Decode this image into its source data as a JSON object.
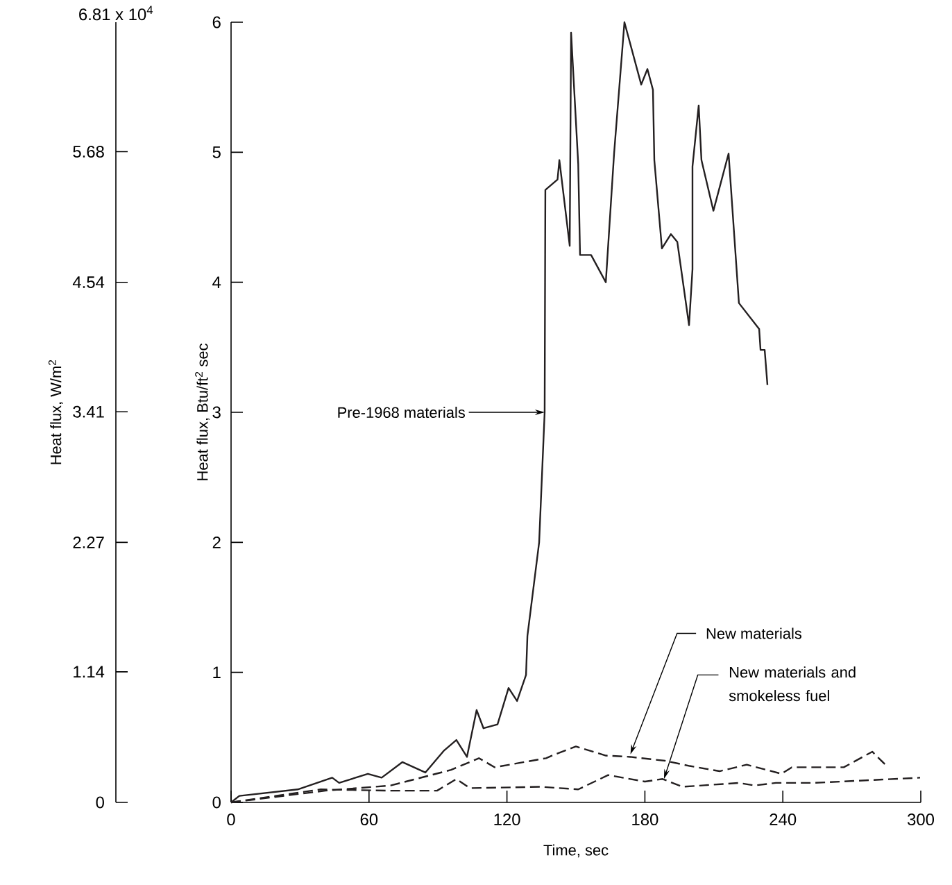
{
  "chart_data": {
    "type": "line",
    "xlabel": "Time, sec",
    "ylabel": "Heat flux, Btu/ft$^{2}$ sec",
    "y2label": "Heat flux, W/m$^{2}$",
    "xlim": [
      0,
      300
    ],
    "xticks": [
      0,
      60,
      120,
      180,
      240,
      300
    ],
    "ylim": [
      0,
      6
    ],
    "yticks": [
      0,
      1,
      2,
      3,
      4,
      5,
      6
    ],
    "y2lim": [
      0,
      6.81
    ],
    "y2ticks": [
      0,
      1.14,
      2.27,
      3.41,
      4.54,
      5.68
    ],
    "series": [
      {
        "color": "#231f20",
        "line_style": "solid",
        "x": [
          0,
          3.6,
          29,
          44,
          47,
          59.5,
          65.5,
          74.5,
          84.5,
          92.7,
          98,
          102.6,
          106.8,
          109.8,
          115.9,
          120.7,
          124.4,
          128.3,
          128.9,
          134,
          136.4,
          136.7,
          142,
          142.8,
          147.3,
          147.9,
          151,
          151.8,
          156.6,
          163,
          166.6,
          171.1,
          178.4,
          181.1,
          183.5,
          184.1,
          187.4,
          191.3,
          194.1,
          199.2,
          200.7,
          200.7,
          203.4,
          204.6,
          209.8,
          216.4,
          220.9,
          229.7,
          230.3,
          232.1,
          233.3
        ],
        "values": [
          0,
          0.05,
          0.1,
          0.19,
          0.15,
          0.22,
          0.19,
          0.31,
          0.23,
          0.4,
          0.48,
          0.35,
          0.71,
          0.57,
          0.6,
          0.88,
          0.78,
          0.98,
          1.28,
          2.0,
          3.0,
          4.71,
          4.79,
          4.94,
          4.28,
          5.92,
          4.91,
          4.21,
          4.21,
          4.0,
          4.99,
          6.0,
          5.52,
          5.64,
          5.48,
          4.94,
          4.26,
          4.37,
          4.31,
          3.67,
          4.1,
          4.89,
          5.36,
          4.94,
          4.55,
          4.99,
          3.84,
          3.64,
          3.48,
          3.48,
          3.21
        ]
      },
      {
        "color": "#231f20",
        "line_style": "dashed",
        "x": [
          0,
          41,
          69.4,
          95.7,
          107.8,
          114.7,
          137,
          141,
          150,
          163,
          173.7,
          188.8,
          199.5,
          212.5,
          224.3,
          239.4,
          243.9,
          253.5,
          266.5,
          278.9,
          284.6
        ],
        "values": [
          0,
          0.09,
          0.13,
          0.25,
          0.34,
          0.27,
          0.34,
          0.37,
          0.43,
          0.36,
          0.35,
          0.32,
          0.28,
          0.24,
          0.29,
          0.22,
          0.27,
          0.27,
          0.27,
          0.39,
          0.29
        ]
      },
      {
        "color": "#231f20",
        "line_style": "dashed",
        "x": [
          0,
          39,
          69.4,
          89.6,
          98,
          103.8,
          135,
          151,
          164,
          180,
          187.7,
          196.4,
          221,
          227.6,
          237,
          253.5,
          299.7
        ],
        "values": [
          0,
          0.1,
          0.09,
          0.09,
          0.18,
          0.11,
          0.12,
          0.1,
          0.21,
          0.16,
          0.18,
          0.12,
          0.15,
          0.13,
          0.15,
          0.15,
          0.19
        ]
      }
    ],
    "annotations": [
      {
        "text": "Pre-1968 materials",
        "x": 136.4,
        "y": 3.0
      },
      {
        "text": "New materials",
        "x": 173.7,
        "y": 0.37
      },
      {
        "text": "New materials and smokeless fuel",
        "x": 188.3,
        "y": 0.18
      },
      "6.81 x 10$^{4}$"
    ]
  }
}
